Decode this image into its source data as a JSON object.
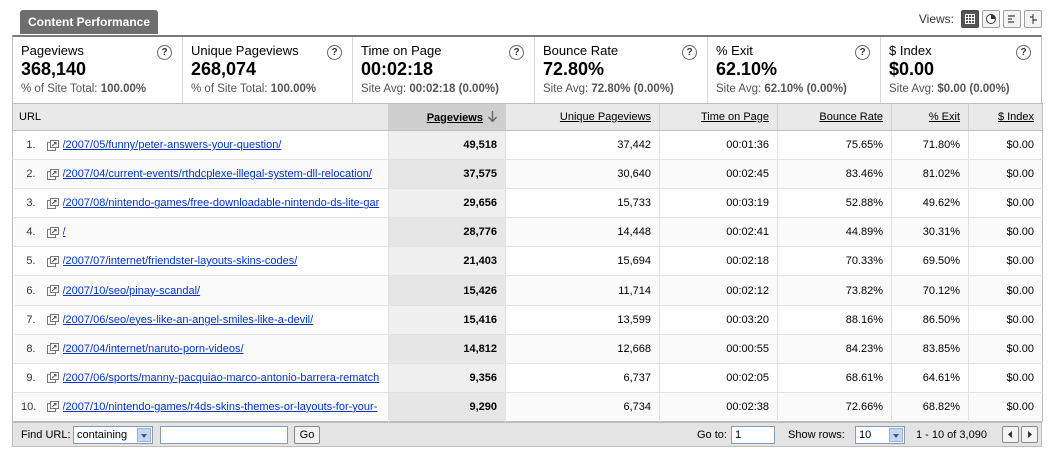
{
  "header": {
    "tab_title": "Content Performance",
    "views_label": "Views:"
  },
  "summary": [
    {
      "name": "Pageviews",
      "value": "368,140",
      "sub_prefix": "% of Site Total: ",
      "sub_value": "100.00%",
      "sub_suffix": ""
    },
    {
      "name": "Unique Pageviews",
      "value": "268,074",
      "sub_prefix": "% of Site Total: ",
      "sub_value": "100.00%",
      "sub_suffix": ""
    },
    {
      "name": "Time on Page",
      "value": "00:02:18",
      "sub_prefix": "Site Avg: ",
      "sub_value": "00:02:18",
      "sub_suffix": " (0.00%)"
    },
    {
      "name": "Bounce Rate",
      "value": "72.80%",
      "sub_prefix": "Site Avg: ",
      "sub_value": "72.80%",
      "sub_suffix": " (0.00%)"
    },
    {
      "name": "% Exit",
      "value": "62.10%",
      "sub_prefix": "Site Avg: ",
      "sub_value": "62.10%",
      "sub_suffix": " (0.00%)"
    },
    {
      "name": "$ Index",
      "value": "$0.00",
      "sub_prefix": "Site Avg: ",
      "sub_value": "$0.00",
      "sub_suffix": " (0.00%)"
    }
  ],
  "help_glyph": "?",
  "table": {
    "columns": [
      "URL",
      "Pageviews",
      "Unique Pageviews",
      "Time on Page",
      "Bounce Rate",
      "% Exit",
      "$ Index"
    ],
    "rows": [
      {
        "n": "1.",
        "url": "/2007/05/funny/peter-answers-your-question/",
        "pv": "49,518",
        "upv": "37,442",
        "top": "00:01:36",
        "br": "75.65%",
        "exit": "71.80%",
        "idx": "$0.00"
      },
      {
        "n": "2.",
        "url": "/2007/04/current-events/rthdcplexe-illegal-system-dll-relocation/",
        "pv": "37,575",
        "upv": "30,640",
        "top": "00:02:45",
        "br": "83.46%",
        "exit": "81.02%",
        "idx": "$0.00"
      },
      {
        "n": "3.",
        "url": "/2007/08/nintendo-games/free-downloadable-nintendo-ds-lite-gar",
        "pv": "29,656",
        "upv": "15,733",
        "top": "00:03:19",
        "br": "52.88%",
        "exit": "49.62%",
        "idx": "$0.00"
      },
      {
        "n": "4.",
        "url": "/",
        "pv": "28,776",
        "upv": "14,448",
        "top": "00:02:41",
        "br": "44.89%",
        "exit": "30.31%",
        "idx": "$0.00"
      },
      {
        "n": "5.",
        "url": "/2007/07/internet/friendster-layouts-skins-codes/",
        "pv": "21,403",
        "upv": "15,694",
        "top": "00:02:18",
        "br": "70.33%",
        "exit": "69.50%",
        "idx": "$0.00"
      },
      {
        "n": "6.",
        "url": "/2007/10/seo/pinay-scandal/",
        "pv": "15,426",
        "upv": "11,714",
        "top": "00:02:12",
        "br": "73.82%",
        "exit": "70.12%",
        "idx": "$0.00"
      },
      {
        "n": "7.",
        "url": "/2007/06/seo/eyes-like-an-angel-smiles-like-a-devil/",
        "pv": "15,416",
        "upv": "13,599",
        "top": "00:03:20",
        "br": "88.16%",
        "exit": "86.50%",
        "idx": "$0.00"
      },
      {
        "n": "8.",
        "url": "/2007/04/internet/naruto-porn-videos/",
        "pv": "14,812",
        "upv": "12,668",
        "top": "00:00:55",
        "br": "84.23%",
        "exit": "83.85%",
        "idx": "$0.00"
      },
      {
        "n": "9.",
        "url": "/2007/06/sports/manny-pacquiao-marco-antonio-barrera-rematch",
        "pv": "9,356",
        "upv": "6,737",
        "top": "00:02:05",
        "br": "68.61%",
        "exit": "64.61%",
        "idx": "$0.00"
      },
      {
        "n": "10.",
        "url": "/2007/10/nintendo-games/r4ds-skins-themes-or-layouts-for-your-",
        "pv": "9,290",
        "upv": "6,734",
        "top": "00:02:38",
        "br": "72.66%",
        "exit": "68.82%",
        "idx": "$0.00"
      }
    ]
  },
  "footer": {
    "find_label": "Find URL:",
    "match_value": "containing",
    "search_value": "",
    "go_button": "Go",
    "goto_label": "Go to:",
    "goto_value": "1",
    "showrows_label": "Show rows:",
    "showrows_value": "10",
    "range": "1 - 10 of 3,090"
  }
}
